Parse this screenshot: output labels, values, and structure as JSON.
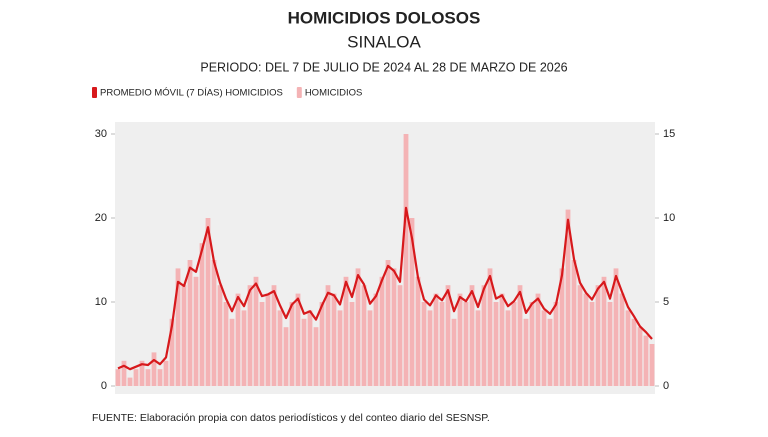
{
  "chart_data": {
    "type": "bar-line",
    "title": "HOMICIDIOS DOLOSOS",
    "subtitle": "SINALOA",
    "period": "PERIODO: DEL 7 DE JULIO DE 2024 AL 28 DE MARZO DE 2026",
    "source": "FUENTE: Elaboración propia con datos periodísticos y del conteo diario del SESNSP.",
    "series": [
      {
        "name": "PROMEDIO MÓVIL (7 DÍAS) HOMICIDIOS",
        "color": "#d7191c",
        "kind": "line",
        "values": [
          2.1,
          2.4,
          2.0,
          2.3,
          2.6,
          2.5,
          3.1,
          2.6,
          3.4,
          7.2,
          12.4,
          11.9,
          14.1,
          13.6,
          16.2,
          18.9,
          14.8,
          12.3,
          10.4,
          8.9,
          10.6,
          9.5,
          11.4,
          12.2,
          10.7,
          10.9,
          11.3,
          9.6,
          8.1,
          9.7,
          10.4,
          8.6,
          8.9,
          7.9,
          9.6,
          11.1,
          10.8,
          9.7,
          12.4,
          10.6,
          13.2,
          12.1,
          9.8,
          10.7,
          12.6,
          14.3,
          13.7,
          12.4,
          21.2,
          17.6,
          12.9,
          10.3,
          9.6,
          10.8,
          10.2,
          11.4,
          8.9,
          10.6,
          10.1,
          11.3,
          9.4,
          11.6,
          13.1,
          10.4,
          10.8,
          9.5,
          10.1,
          11.2,
          8.7,
          9.8,
          10.4,
          9.2,
          8.6,
          9.7,
          13.2,
          19.8,
          15.1,
          12.3,
          11.1,
          10.3,
          11.6,
          12.4,
          10.4,
          13.1,
          11.2,
          9.4,
          8.3,
          7.1,
          6.4,
          5.6
        ]
      },
      {
        "name": "HOMICIDIOS",
        "color": "#f4b3b5",
        "kind": "bar",
        "values": [
          2,
          3,
          1,
          2,
          3,
          2,
          4,
          2,
          3,
          8,
          14,
          12,
          15,
          13,
          17,
          20,
          15,
          12,
          10,
          8,
          11,
          9,
          12,
          13,
          10,
          11,
          12,
          9,
          7,
          10,
          11,
          8,
          9,
          7,
          10,
          12,
          11,
          9,
          13,
          10,
          14,
          12,
          9,
          11,
          13,
          15,
          14,
          12,
          30,
          20,
          13,
          10,
          9,
          11,
          10,
          12,
          8,
          11,
          10,
          12,
          9,
          12,
          14,
          10,
          11,
          9,
          10,
          12,
          8,
          10,
          11,
          9,
          8,
          10,
          14,
          21,
          15,
          12,
          11,
          10,
          12,
          13,
          10,
          14,
          11,
          9,
          8,
          7,
          6,
          5
        ]
      }
    ],
    "ylim": [
      0,
      30
    ],
    "yticks": [
      0,
      10,
      20,
      30
    ],
    "y2lim": [
      0,
      15
    ],
    "y2ticks": [
      0,
      5,
      10,
      15
    ],
    "grid": false
  }
}
